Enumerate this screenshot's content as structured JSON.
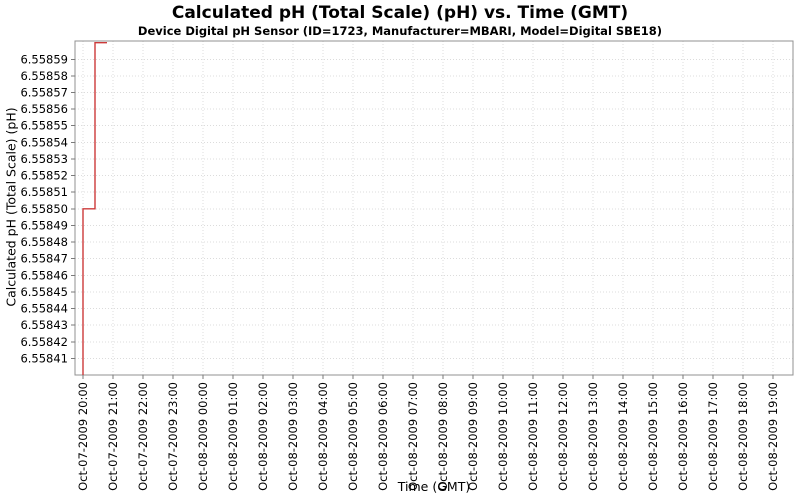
{
  "chart": {
    "title": "Calculated pH (Total Scale) (pH) vs. Time (GMT)",
    "subtitle": "Device Digital pH Sensor (ID=1723, Manufacturer=MBARI, Model=Digital SBE18)",
    "x_axis_label": "Time (GMT)",
    "y_axis_label": "Calculated pH (Total Scale) (pH)"
  },
  "colors": {
    "series_line": "#cc3a3a",
    "plot_border": "#909090",
    "tick_mark": "#7a7a7a",
    "gridline": "#dcdcdc",
    "label_text": "#000000",
    "background": "#ffffff"
  },
  "chart_data": {
    "type": "line",
    "title": "Calculated pH (Total Scale) (pH) vs. Time (GMT)",
    "subtitle": "Device Digital pH Sensor (ID=1723, Manufacturer=MBARI, Model=Digital SBE18)",
    "xlabel": "Time (GMT)",
    "ylabel": "Calculated pH (Total Scale) (pH)",
    "grid": true,
    "legend": "none",
    "x_tick_labels": [
      "Oct-07-2009 20:00",
      "Oct-07-2009 21:00",
      "Oct-07-2009 22:00",
      "Oct-07-2009 23:00",
      "Oct-08-2009 00:00",
      "Oct-08-2009 01:00",
      "Oct-08-2009 02:00",
      "Oct-08-2009 03:00",
      "Oct-08-2009 04:00",
      "Oct-08-2009 05:00",
      "Oct-08-2009 06:00",
      "Oct-08-2009 07:00",
      "Oct-08-2009 08:00",
      "Oct-08-2009 09:00",
      "Oct-08-2009 10:00",
      "Oct-08-2009 11:00",
      "Oct-08-2009 12:00",
      "Oct-08-2009 13:00",
      "Oct-08-2009 14:00",
      "Oct-08-2009 15:00",
      "Oct-08-2009 16:00",
      "Oct-08-2009 17:00",
      "Oct-08-2009 18:00",
      "Oct-08-2009 19:00"
    ],
    "y_tick_labels": [
      "6.55841",
      "6.55842",
      "6.55843",
      "6.55844",
      "6.55845",
      "6.55846",
      "6.55847",
      "6.55848",
      "6.55849",
      "6.55850",
      "6.55851",
      "6.55852",
      "6.55853",
      "6.55854",
      "6.55855",
      "6.55856",
      "6.55857",
      "6.55858",
      "6.55859"
    ],
    "ylim": [
      6.5584,
      6.558601
    ],
    "series": [
      {
        "name": "Calculated pH (Total Scale) (pH)",
        "color": "#cc3a3a",
        "x_hours_from_first_tick": [
          0,
          0,
          0.4,
          0.4,
          0.8
        ],
        "values_ph": [
          6.5584,
          6.5585,
          6.5585,
          6.5586,
          6.5586
        ],
        "note": "step line; first value clipped at axis bottom, last values clipped at axis top; no data after ~Oct-07-2009 20:48"
      }
    ]
  }
}
